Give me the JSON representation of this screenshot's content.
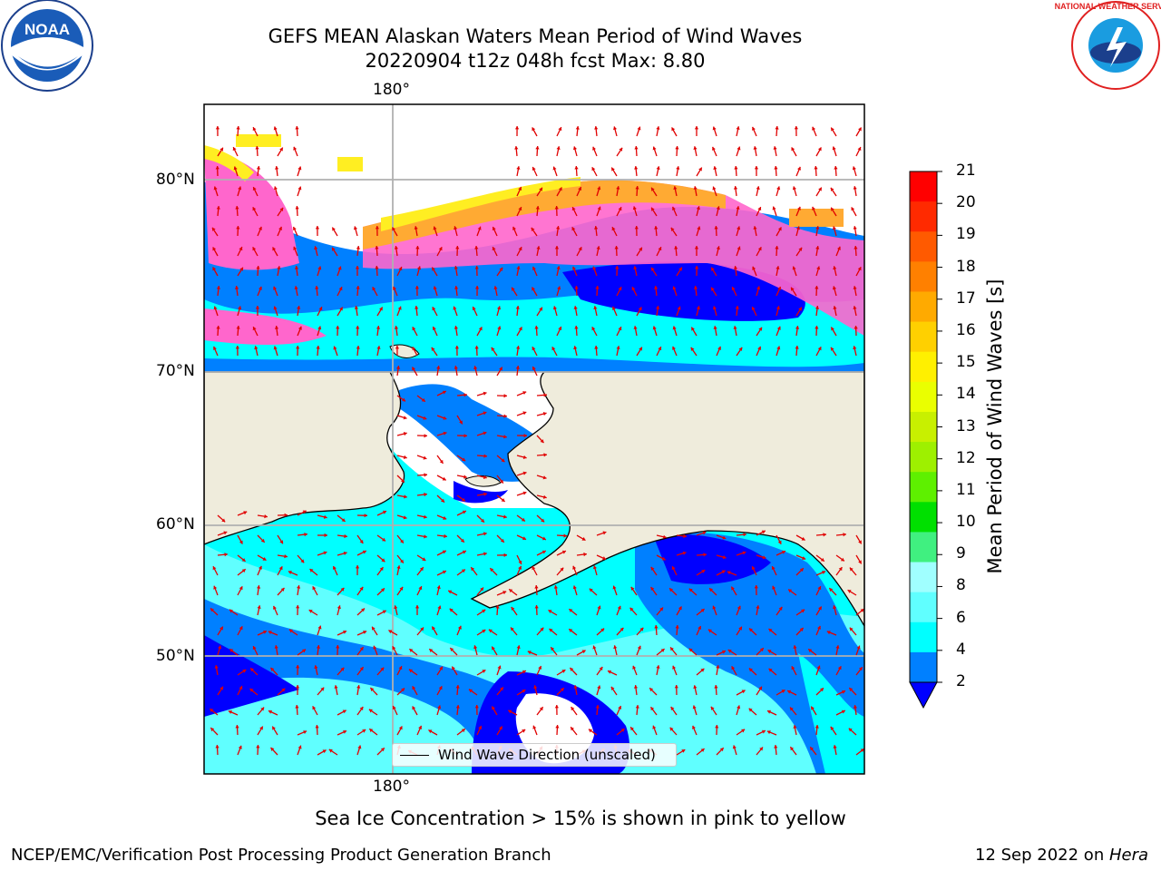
{
  "header": {
    "title_line1": "GEFS MEAN Alaskan Waters Mean Period of Wind Waves",
    "title_line2": "20220904 t12z 048h fcst   Max: 8.80"
  },
  "map": {
    "lon_label_top": "180°",
    "lon_label_bottom": "180°",
    "lat_labels": [
      "80°N",
      "70°N",
      "60°N",
      "50°N"
    ],
    "legend_label": "Wind Wave Direction (unscaled)",
    "arrow_color": "#e00000",
    "land_color": "#efecdc",
    "ice_colors": [
      "#ff66cc",
      "#ffaa33",
      "#ffee22"
    ]
  },
  "colorbar": {
    "label": "Mean Period of Wind Waves [s]",
    "ticks": [
      "21",
      "20",
      "19",
      "18",
      "17",
      "16",
      "15",
      "14",
      "13",
      "12",
      "11",
      "10",
      "9",
      "8",
      "6",
      "4",
      "2"
    ],
    "colors": [
      "#ff0000",
      "#ff2a00",
      "#ff5a00",
      "#ff8000",
      "#ffaa00",
      "#ffd000",
      "#fff000",
      "#eaff00",
      "#c8f000",
      "#9ef000",
      "#5ef000",
      "#00e000",
      "#40f080",
      "#a0ffff",
      "#60ffff",
      "#00ffff",
      "#0080ff",
      "#0000ff"
    ]
  },
  "caption": "Sea Ice Concentration > 15% is shown in pink to yellow",
  "footer": {
    "left": "NCEP/EMC/Verification Post Processing Product Generation Branch",
    "right_date": "12 Sep 2022 on ",
    "right_host": "Hera"
  },
  "logos": {
    "noaa_text": "NOAA",
    "nws_text": "NATIONAL WEATHER SERVICE"
  }
}
